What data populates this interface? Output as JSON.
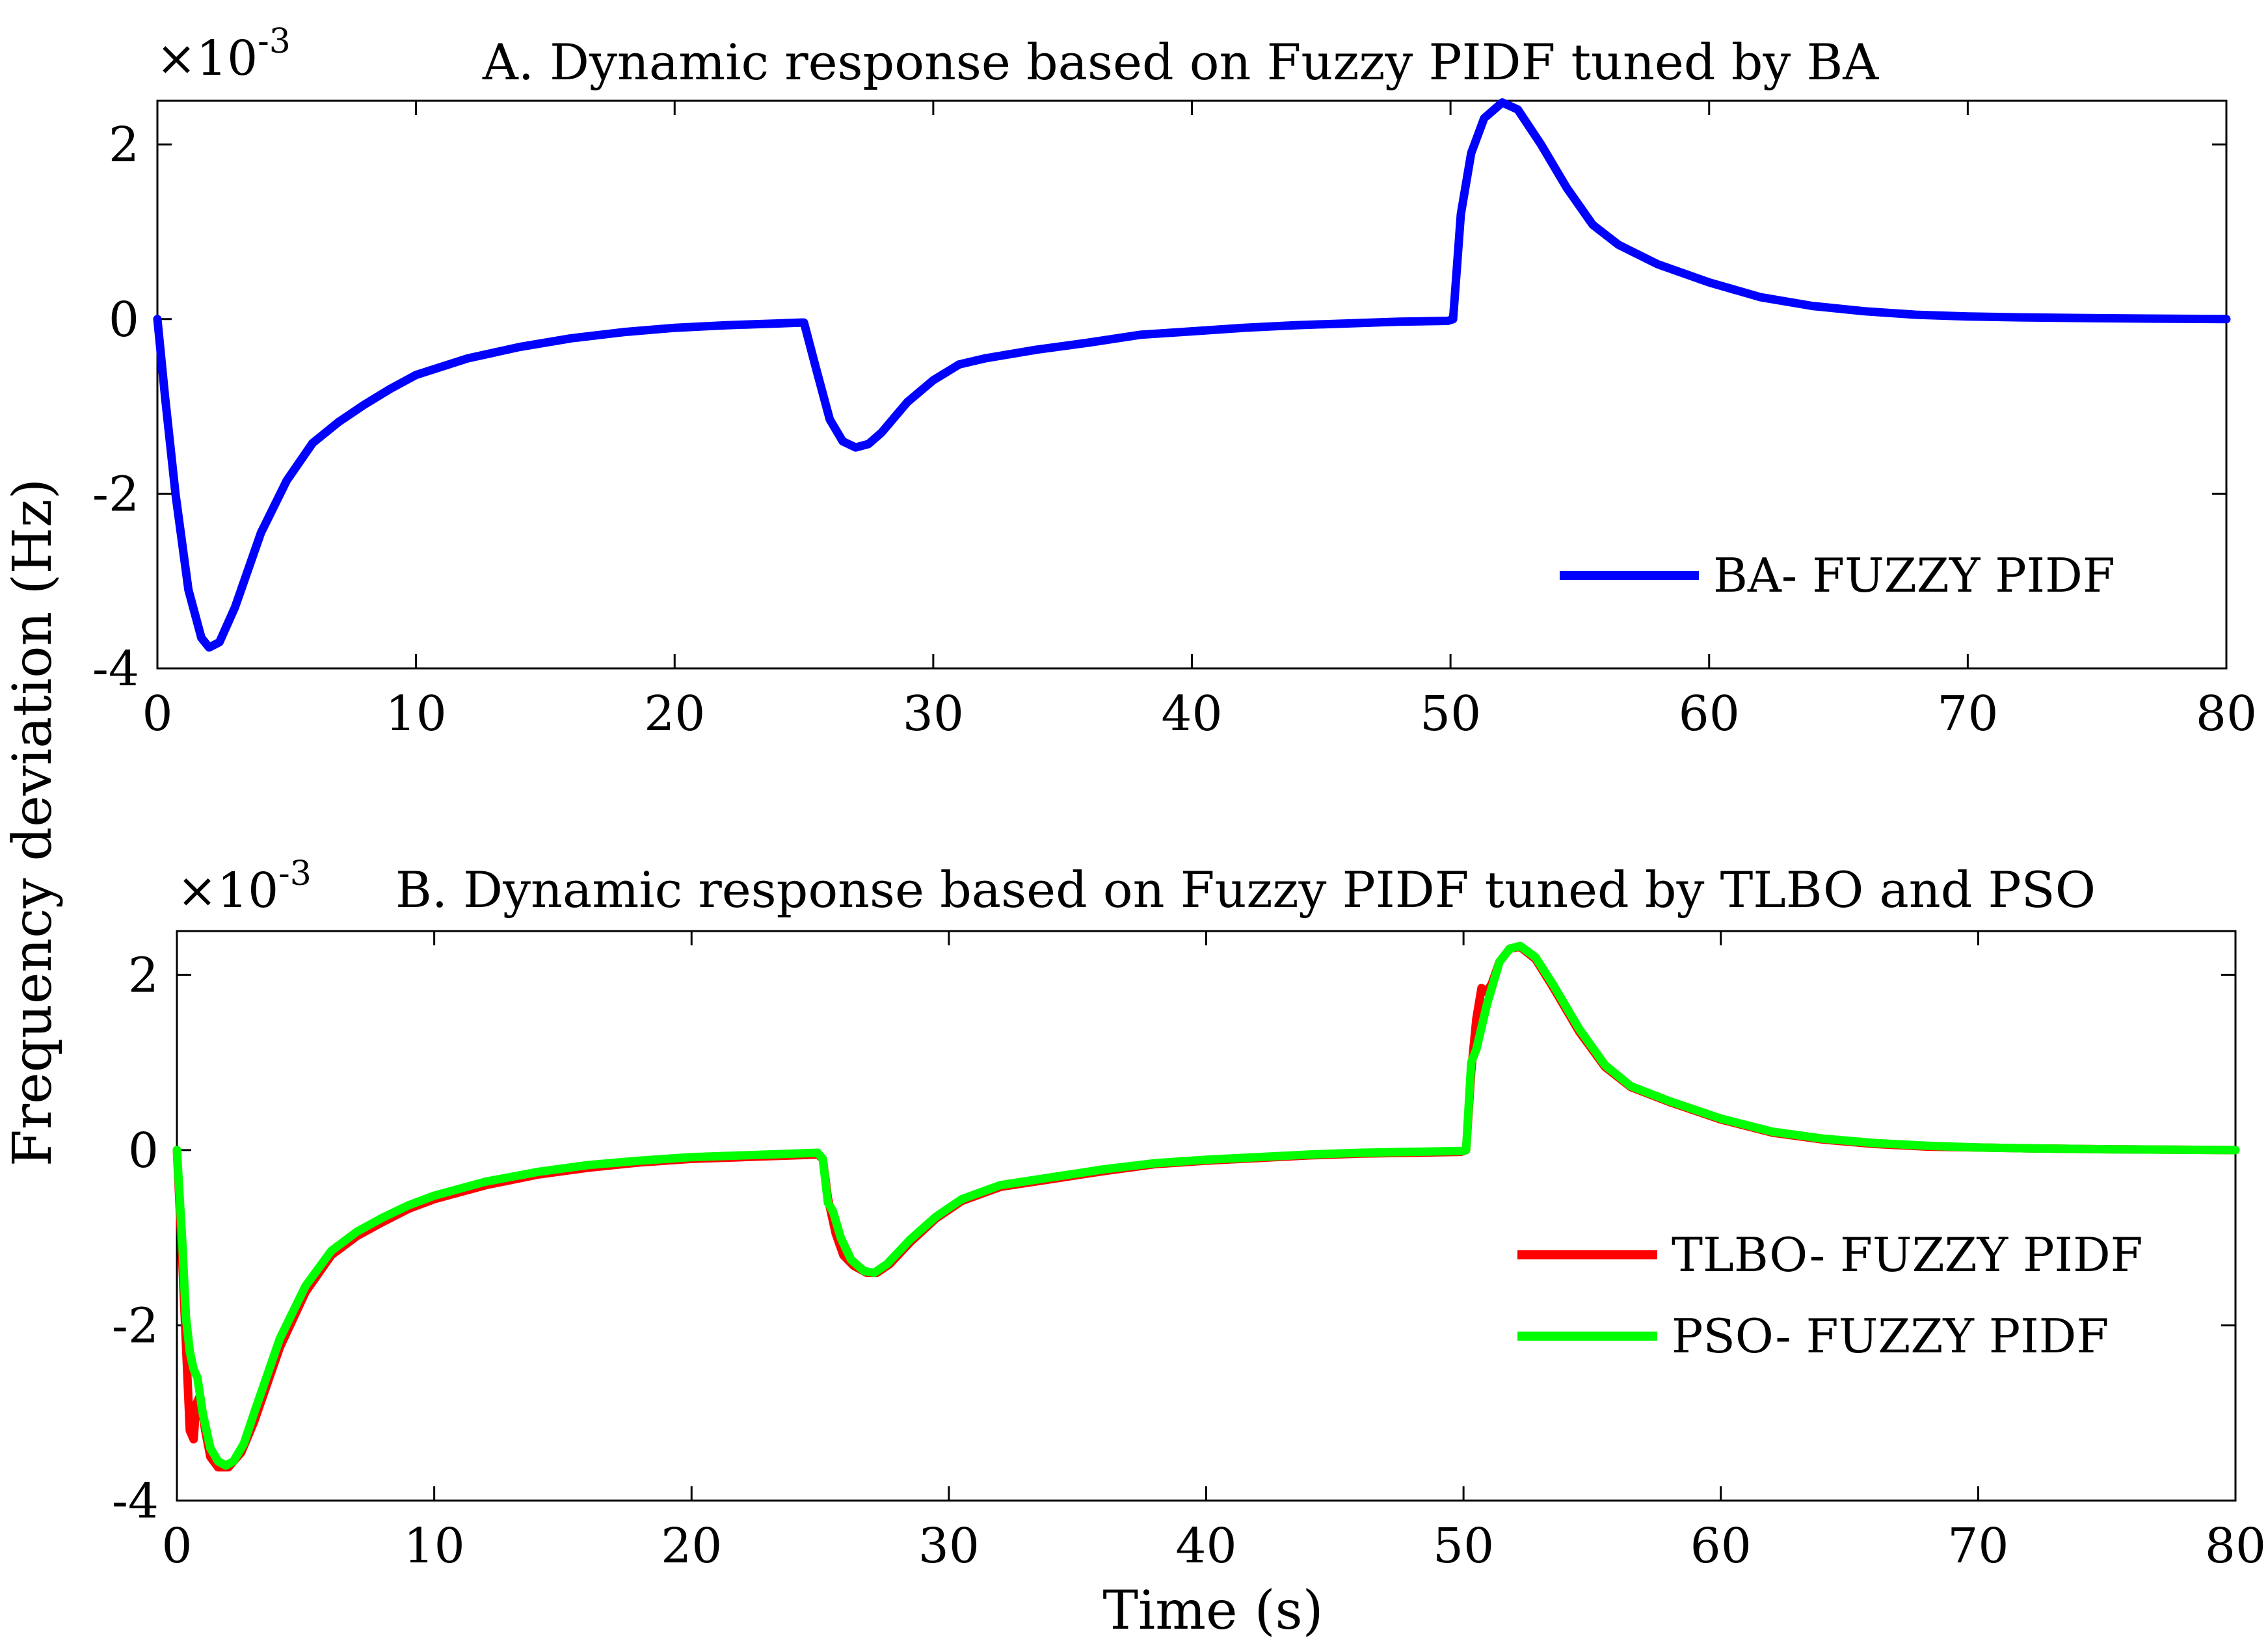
{
  "figure": {
    "ylabel": "Frequency deviation (Hz)",
    "xlabel": "Time (s)"
  },
  "chart_data": [
    {
      "type": "line",
      "title": "A. Dynamic response based on Fuzzy PIDF tuned by BA",
      "scale_base": "×10",
      "scale_exp": "-3",
      "xlim": [
        0,
        80
      ],
      "ylim": [
        -4,
        2.5
      ],
      "xticks": [
        0,
        10,
        20,
        30,
        40,
        50,
        60,
        70,
        80
      ],
      "yticks": [
        -4,
        -2,
        0,
        2
      ],
      "legend": "bottom-right",
      "series": [
        {
          "name": "BA- FUZZY PIDF",
          "color": "#0000ff",
          "points": [
            [
              0,
              0
            ],
            [
              0.3,
              -0.9
            ],
            [
              0.7,
              -2.0
            ],
            [
              1.2,
              -3.1
            ],
            [
              1.7,
              -3.65
            ],
            [
              2.0,
              -3.76
            ],
            [
              2.4,
              -3.7
            ],
            [
              3,
              -3.3
            ],
            [
              4,
              -2.45
            ],
            [
              5,
              -1.85
            ],
            [
              6,
              -1.42
            ],
            [
              7,
              -1.18
            ],
            [
              8,
              -0.98
            ],
            [
              9,
              -0.8
            ],
            [
              10,
              -0.64
            ],
            [
              12,
              -0.45
            ],
            [
              14,
              -0.32
            ],
            [
              16,
              -0.22
            ],
            [
              18,
              -0.15
            ],
            [
              20,
              -0.1
            ],
            [
              22,
              -0.07
            ],
            [
              24,
              -0.05
            ],
            [
              24.9,
              -0.04
            ],
            [
              25.0,
              -0.04
            ],
            [
              25.5,
              -0.6
            ],
            [
              26,
              -1.15
            ],
            [
              26.5,
              -1.4
            ],
            [
              27.0,
              -1.47
            ],
            [
              27.5,
              -1.43
            ],
            [
              28,
              -1.3
            ],
            [
              29,
              -0.95
            ],
            [
              30,
              -0.7
            ],
            [
              31,
              -0.52
            ],
            [
              32,
              -0.45
            ],
            [
              34,
              -0.35
            ],
            [
              36,
              -0.27
            ],
            [
              38,
              -0.18
            ],
            [
              40,
              -0.14
            ],
            [
              42,
              -0.1
            ],
            [
              44,
              -0.07
            ],
            [
              46,
              -0.05
            ],
            [
              48,
              -0.03
            ],
            [
              49.9,
              -0.02
            ],
            [
              50.1,
              0.0
            ],
            [
              50.4,
              1.2
            ],
            [
              50.8,
              1.9
            ],
            [
              51.3,
              2.3
            ],
            [
              52.0,
              2.48
            ],
            [
              52.6,
              2.4
            ],
            [
              53.5,
              2.0
            ],
            [
              54.5,
              1.5
            ],
            [
              55.5,
              1.08
            ],
            [
              56.5,
              0.85
            ],
            [
              58,
              0.63
            ],
            [
              60,
              0.42
            ],
            [
              62,
              0.25
            ],
            [
              64,
              0.15
            ],
            [
              66,
              0.09
            ],
            [
              68,
              0.05
            ],
            [
              70,
              0.03
            ],
            [
              72,
              0.02
            ],
            [
              75,
              0.01
            ],
            [
              80,
              0.0
            ]
          ]
        }
      ]
    },
    {
      "type": "line",
      "title": "B. Dynamic response based on Fuzzy PIDF tuned by TLBO and PSO",
      "scale_base": "×10",
      "scale_exp": "-3",
      "xlim": [
        0,
        80
      ],
      "ylim": [
        -4,
        2.5
      ],
      "xticks": [
        0,
        10,
        20,
        30,
        40,
        50,
        60,
        70,
        80
      ],
      "yticks": [
        -4,
        -2,
        0,
        2
      ],
      "legend": "bottom-right",
      "series": [
        {
          "name": "TLBO- FUZZY PIDF",
          "color": "#ff0000",
          "points": [
            [
              0,
              0
            ],
            [
              0.2,
              -1.2
            ],
            [
              0.35,
              -2.2
            ],
            [
              0.5,
              -3.2
            ],
            [
              0.65,
              -3.3
            ],
            [
              0.75,
              -2.9
            ],
            [
              0.9,
              -2.8
            ],
            [
              1.1,
              -3.2
            ],
            [
              1.3,
              -3.5
            ],
            [
              1.6,
              -3.62
            ],
            [
              2.0,
              -3.62
            ],
            [
              2.5,
              -3.45
            ],
            [
              3,
              -3.1
            ],
            [
              4,
              -2.25
            ],
            [
              5,
              -1.62
            ],
            [
              6,
              -1.2
            ],
            [
              7,
              -0.98
            ],
            [
              8,
              -0.82
            ],
            [
              9,
              -0.67
            ],
            [
              10,
              -0.56
            ],
            [
              12,
              -0.4
            ],
            [
              14,
              -0.28
            ],
            [
              16,
              -0.2
            ],
            [
              18,
              -0.14
            ],
            [
              20,
              -0.1
            ],
            [
              22,
              -0.08
            ],
            [
              24,
              -0.06
            ],
            [
              24.9,
              -0.05
            ],
            [
              25.1,
              -0.1
            ],
            [
              25.3,
              -0.55
            ],
            [
              25.6,
              -0.95
            ],
            [
              25.9,
              -1.2
            ],
            [
              26.3,
              -1.32
            ],
            [
              26.8,
              -1.4
            ],
            [
              27.2,
              -1.4
            ],
            [
              27.7,
              -1.3
            ],
            [
              28.5,
              -1.05
            ],
            [
              29.5,
              -0.78
            ],
            [
              30.5,
              -0.58
            ],
            [
              32,
              -0.42
            ],
            [
              34,
              -0.33
            ],
            [
              36,
              -0.24
            ],
            [
              38,
              -0.16
            ],
            [
              40,
              -0.12
            ],
            [
              42,
              -0.09
            ],
            [
              44,
              -0.06
            ],
            [
              46,
              -0.04
            ],
            [
              48,
              -0.03
            ],
            [
              49.9,
              -0.02
            ],
            [
              50.1,
              0.0
            ],
            [
              50.3,
              0.9
            ],
            [
              50.5,
              1.5
            ],
            [
              50.7,
              1.85
            ],
            [
              50.9,
              1.8
            ],
            [
              51.1,
              1.9
            ],
            [
              51.4,
              2.15
            ],
            [
              51.8,
              2.3
            ],
            [
              52.2,
              2.32
            ],
            [
              52.8,
              2.18
            ],
            [
              53.5,
              1.85
            ],
            [
              54.5,
              1.35
            ],
            [
              55.5,
              0.95
            ],
            [
              56.5,
              0.72
            ],
            [
              58,
              0.55
            ],
            [
              60,
              0.35
            ],
            [
              62,
              0.2
            ],
            [
              64,
              0.12
            ],
            [
              66,
              0.07
            ],
            [
              68,
              0.04
            ],
            [
              70,
              0.03
            ],
            [
              72,
              0.02
            ],
            [
              75,
              0.01
            ],
            [
              80,
              0.0
            ]
          ]
        },
        {
          "name": "PSO- FUZZY PIDF",
          "color": "#00ff00",
          "points": [
            [
              0,
              0
            ],
            [
              0.2,
              -1.0
            ],
            [
              0.35,
              -1.9
            ],
            [
              0.5,
              -2.3
            ],
            [
              0.65,
              -2.5
            ],
            [
              0.8,
              -2.6
            ],
            [
              1.0,
              -3.0
            ],
            [
              1.3,
              -3.4
            ],
            [
              1.6,
              -3.55
            ],
            [
              1.9,
              -3.6
            ],
            [
              2.2,
              -3.55
            ],
            [
              2.6,
              -3.35
            ],
            [
              3,
              -3.0
            ],
            [
              4,
              -2.15
            ],
            [
              5,
              -1.55
            ],
            [
              6,
              -1.15
            ],
            [
              7,
              -0.93
            ],
            [
              8,
              -0.77
            ],
            [
              9,
              -0.63
            ],
            [
              10,
              -0.52
            ],
            [
              12,
              -0.36
            ],
            [
              14,
              -0.25
            ],
            [
              16,
              -0.17
            ],
            [
              18,
              -0.12
            ],
            [
              20,
              -0.08
            ],
            [
              22,
              -0.06
            ],
            [
              24,
              -0.04
            ],
            [
              24.9,
              -0.03
            ],
            [
              25.1,
              -0.1
            ],
            [
              25.3,
              -0.6
            ],
            [
              25.5,
              -0.7
            ],
            [
              25.8,
              -1.0
            ],
            [
              26.2,
              -1.25
            ],
            [
              26.7,
              -1.38
            ],
            [
              27.1,
              -1.4
            ],
            [
              27.6,
              -1.3
            ],
            [
              28.5,
              -1.02
            ],
            [
              29.5,
              -0.76
            ],
            [
              30.5,
              -0.56
            ],
            [
              32,
              -0.4
            ],
            [
              34,
              -0.31
            ],
            [
              36,
              -0.22
            ],
            [
              38,
              -0.15
            ],
            [
              40,
              -0.11
            ],
            [
              42,
              -0.08
            ],
            [
              44,
              -0.05
            ],
            [
              46,
              -0.03
            ],
            [
              48,
              -0.02
            ],
            [
              49.9,
              -0.01
            ],
            [
              50.1,
              0.0
            ],
            [
              50.3,
              1.0
            ],
            [
              50.5,
              1.15
            ],
            [
              50.7,
              1.4
            ],
            [
              50.9,
              1.65
            ],
            [
              51.1,
              1.85
            ],
            [
              51.4,
              2.15
            ],
            [
              51.8,
              2.3
            ],
            [
              52.2,
              2.33
            ],
            [
              52.8,
              2.2
            ],
            [
              53.5,
              1.88
            ],
            [
              54.5,
              1.38
            ],
            [
              55.5,
              0.97
            ],
            [
              56.5,
              0.73
            ],
            [
              58,
              0.56
            ],
            [
              60,
              0.36
            ],
            [
              62,
              0.21
            ],
            [
              64,
              0.13
            ],
            [
              66,
              0.08
            ],
            [
              68,
              0.05
            ],
            [
              70,
              0.03
            ],
            [
              72,
              0.02
            ],
            [
              75,
              0.01
            ],
            [
              80,
              0.0
            ]
          ]
        }
      ]
    }
  ]
}
